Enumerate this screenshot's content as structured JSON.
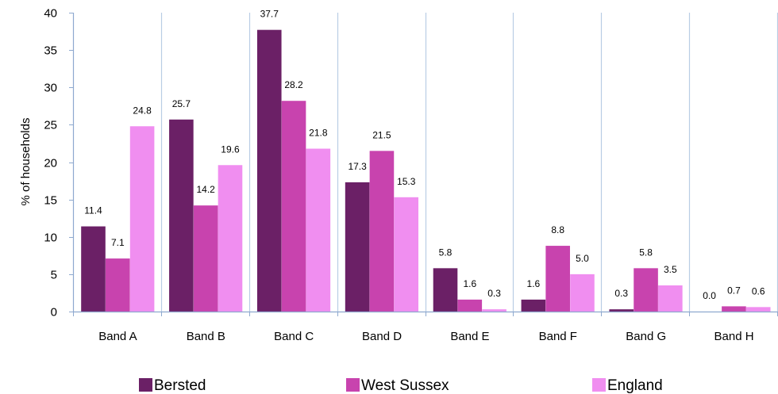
{
  "chart_data": {
    "type": "bar",
    "categories": [
      "Band A",
      "Band B",
      "Band C",
      "Band D",
      "Band E",
      "Band F",
      "Band G",
      "Band H"
    ],
    "series": [
      {
        "name": "Bersted",
        "color": "#6B2066",
        "values": [
          11.4,
          25.7,
          37.7,
          17.3,
          5.8,
          1.6,
          0.3,
          0.0
        ],
        "labels": [
          "11.4",
          "25.7",
          "37.7",
          "17.3",
          "5.8",
          "1.6",
          "0.3",
          "0.0"
        ]
      },
      {
        "name": "West Sussex",
        "color": "#C843AE",
        "values": [
          7.1,
          14.2,
          28.2,
          21.5,
          1.6,
          8.8,
          5.8,
          0.7
        ],
        "labels": [
          "7.1",
          "14.2",
          "28.2",
          "21.5",
          "1.6",
          "8.8",
          "5.8",
          "0.7"
        ]
      },
      {
        "name": "England",
        "color": "#F08EF0",
        "values": [
          24.8,
          19.6,
          21.8,
          15.3,
          0.3,
          5.0,
          3.5,
          0.6
        ],
        "labels": [
          "24.8",
          "19.6",
          "21.8",
          "15.3",
          "0.3",
          "5.0",
          "3.5",
          "0.6"
        ]
      }
    ],
    "title": "",
    "xlabel": "",
    "ylabel": "% of households",
    "ylim": [
      0,
      40
    ],
    "yticks": [
      0,
      5,
      10,
      15,
      20,
      25,
      30,
      35,
      40
    ],
    "grid": true,
    "legend_position": "bottom"
  }
}
